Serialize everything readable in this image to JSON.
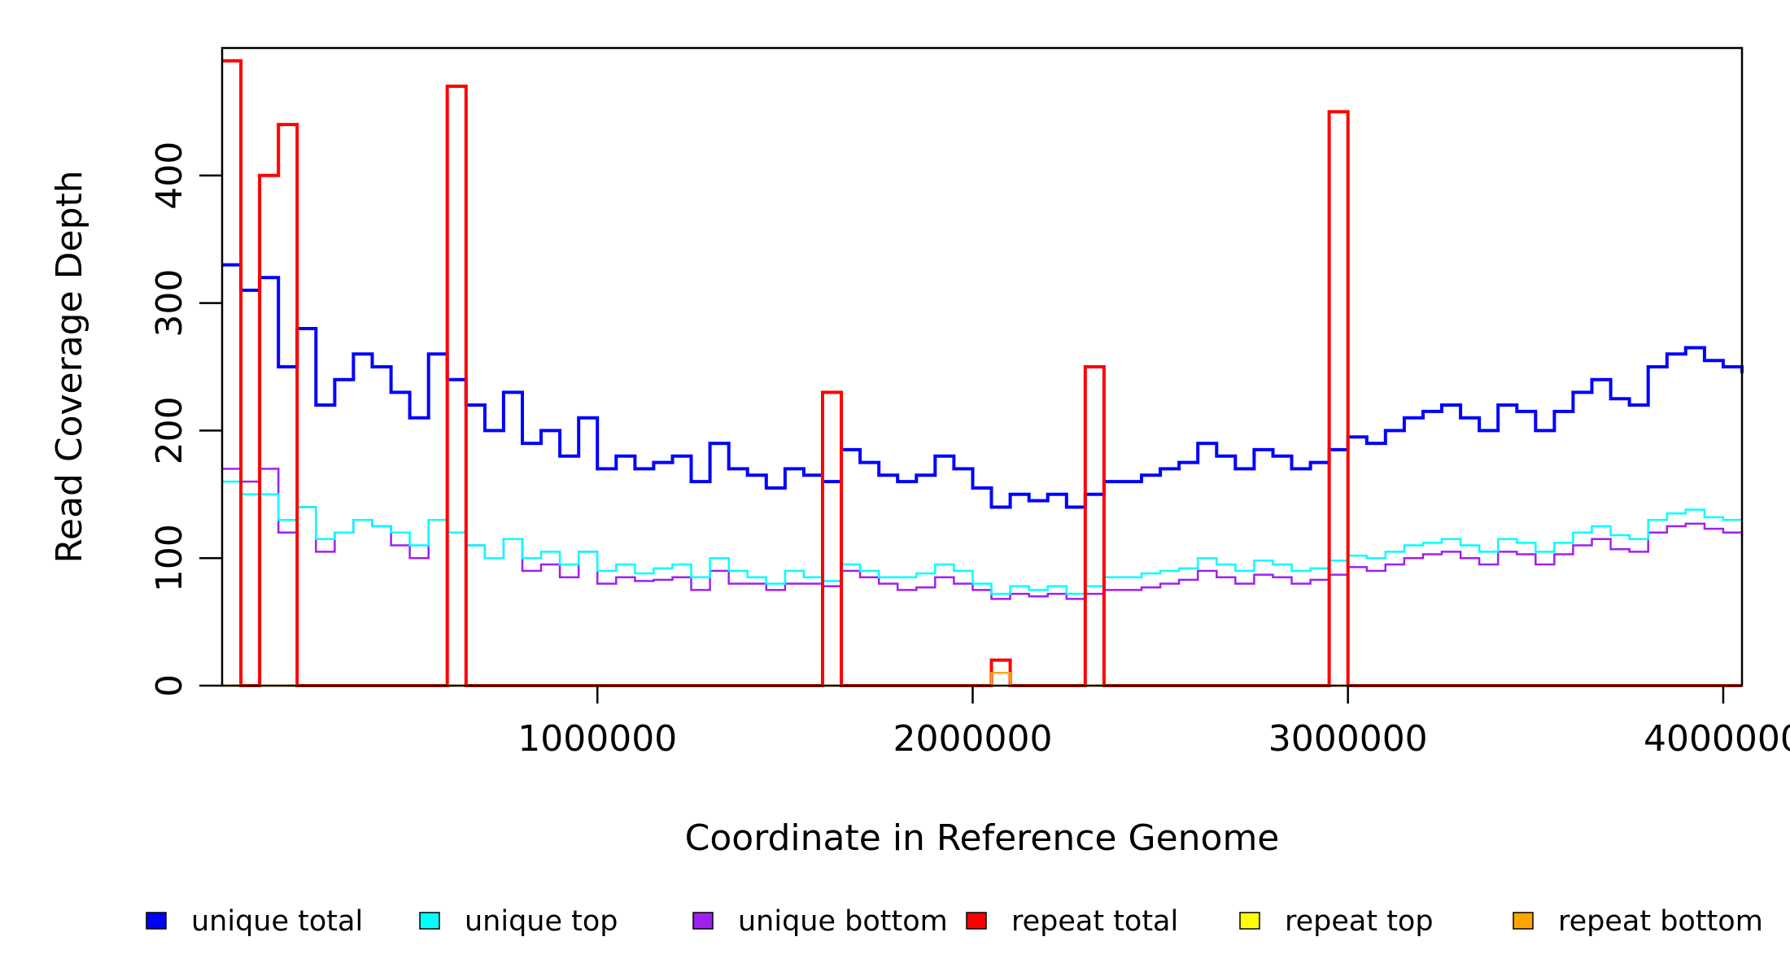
{
  "chart_data": {
    "type": "line",
    "title": "",
    "xlabel": "Coordinate in Reference Genome",
    "ylabel": "Read Coverage Depth",
    "xlim": [
      0,
      4050000
    ],
    "ylim": [
      0,
      500
    ],
    "x_ticks": [
      1000000,
      2000000,
      3000000,
      4000000
    ],
    "x_tick_labels": [
      "1000000",
      "2000000",
      "3000000",
      "4000000"
    ],
    "y_ticks": [
      0,
      100,
      200,
      300,
      400
    ],
    "y_tick_labels": [
      "0",
      "100",
      "200",
      "300",
      "400"
    ],
    "grid": false,
    "legend_position": "bottom",
    "x": [
      0,
      50000,
      100000,
      150000,
      200000,
      250000,
      300000,
      350000,
      400000,
      450000,
      500000,
      550000,
      600000,
      650000,
      700000,
      750000,
      800000,
      850000,
      900000,
      950000,
      1000000,
      1050000,
      1100000,
      1150000,
      1200000,
      1250000,
      1300000,
      1350000,
      1400000,
      1450000,
      1500000,
      1550000,
      1600000,
      1650000,
      1700000,
      1750000,
      1800000,
      1850000,
      1900000,
      1950000,
      2000000,
      2050000,
      2100000,
      2150000,
      2200000,
      2250000,
      2300000,
      2350000,
      2400000,
      2450000,
      2500000,
      2550000,
      2600000,
      2650000,
      2700000,
      2750000,
      2800000,
      2850000,
      2900000,
      2950000,
      3000000,
      3050000,
      3100000,
      3150000,
      3200000,
      3250000,
      3300000,
      3350000,
      3400000,
      3450000,
      3500000,
      3550000,
      3600000,
      3650000,
      3700000,
      3750000,
      3800000,
      3850000,
      3900000,
      3950000,
      4000000,
      4050000
    ],
    "series": [
      {
        "name": "unique total",
        "color": "#0000ff",
        "values": [
          330,
          310,
          320,
          250,
          280,
          220,
          240,
          260,
          250,
          230,
          210,
          260,
          240,
          220,
          200,
          230,
          190,
          200,
          180,
          210,
          170,
          180,
          170,
          175,
          180,
          160,
          190,
          170,
          165,
          155,
          170,
          165,
          160,
          185,
          175,
          165,
          160,
          165,
          180,
          170,
          155,
          140,
          150,
          145,
          150,
          140,
          150,
          160,
          160,
          165,
          170,
          175,
          190,
          180,
          170,
          185,
          180,
          170,
          175,
          185,
          195,
          190,
          200,
          210,
          215,
          220,
          210,
          200,
          220,
          215,
          200,
          215,
          230,
          240,
          225,
          220,
          250,
          260,
          265,
          255,
          250,
          245
        ]
      },
      {
        "name": "unique top",
        "color": "#00ffff",
        "values": [
          160,
          150,
          150,
          130,
          140,
          115,
          120,
          130,
          125,
          120,
          110,
          130,
          120,
          110,
          100,
          115,
          100,
          105,
          95,
          105,
          90,
          95,
          88,
          92,
          95,
          85,
          100,
          90,
          85,
          80,
          90,
          85,
          82,
          95,
          90,
          85,
          85,
          88,
          95,
          90,
          80,
          72,
          78,
          75,
          78,
          72,
          78,
          85,
          85,
          88,
          90,
          92,
          100,
          95,
          90,
          98,
          95,
          90,
          92,
          98,
          102,
          100,
          105,
          110,
          112,
          115,
          110,
          105,
          115,
          112,
          105,
          112,
          120,
          125,
          118,
          115,
          130,
          135,
          138,
          132,
          130,
          128
        ]
      },
      {
        "name": "unique bottom",
        "color": "#a020f0",
        "values": [
          170,
          160,
          170,
          120,
          140,
          105,
          120,
          130,
          125,
          110,
          100,
          130,
          120,
          110,
          100,
          115,
          90,
          95,
          85,
          105,
          80,
          85,
          82,
          83,
          85,
          75,
          90,
          80,
          80,
          75,
          80,
          80,
          78,
          90,
          85,
          80,
          75,
          77,
          85,
          80,
          75,
          68,
          72,
          70,
          72,
          68,
          72,
          75,
          75,
          77,
          80,
          83,
          90,
          85,
          80,
          87,
          85,
          80,
          83,
          87,
          93,
          90,
          95,
          100,
          103,
          105,
          100,
          95,
          105,
          103,
          95,
          103,
          110,
          115,
          107,
          105,
          120,
          125,
          127,
          123,
          120,
          117
        ]
      },
      {
        "name": "repeat total",
        "color": "#ff0000",
        "values": [
          490,
          0,
          400,
          440,
          0,
          0,
          0,
          0,
          0,
          0,
          0,
          0,
          470,
          0,
          0,
          0,
          0,
          0,
          0,
          0,
          0,
          0,
          0,
          0,
          0,
          0,
          0,
          0,
          0,
          0,
          0,
          0,
          230,
          0,
          0,
          0,
          0,
          0,
          0,
          0,
          0,
          20,
          0,
          0,
          0,
          0,
          250,
          0,
          0,
          0,
          0,
          0,
          0,
          0,
          0,
          0,
          0,
          0,
          0,
          450,
          0,
          0,
          0,
          0,
          0,
          0,
          0,
          0,
          0,
          0,
          0,
          0,
          0,
          0,
          0,
          0,
          0,
          0,
          0,
          0,
          0,
          0
        ]
      },
      {
        "name": "repeat top",
        "color": "#ffff00",
        "values": [
          0,
          0,
          0,
          0,
          0,
          0,
          0,
          0,
          0,
          0,
          0,
          0,
          0,
          0,
          0,
          0,
          0,
          0,
          0,
          0,
          0,
          0,
          0,
          0,
          0,
          0,
          0,
          0,
          0,
          0,
          0,
          0,
          0,
          0,
          0,
          0,
          0,
          0,
          0,
          0,
          0,
          0,
          0,
          0,
          0,
          0,
          0,
          0,
          0,
          0,
          0,
          0,
          0,
          0,
          0,
          0,
          0,
          0,
          0,
          0,
          0,
          0,
          0,
          0,
          0,
          0,
          0,
          0,
          0,
          0,
          0,
          0,
          0,
          0,
          0,
          0,
          0,
          0,
          0,
          0,
          0,
          0
        ]
      },
      {
        "name": "repeat bottom",
        "color": "#ffa500",
        "values": [
          0,
          0,
          0,
          0,
          0,
          0,
          0,
          0,
          0,
          0,
          0,
          0,
          0,
          0,
          0,
          0,
          0,
          0,
          0,
          0,
          0,
          0,
          0,
          0,
          0,
          0,
          0,
          0,
          0,
          0,
          0,
          0,
          0,
          0,
          0,
          0,
          0,
          0,
          0,
          0,
          0,
          10,
          0,
          0,
          0,
          0,
          0,
          0,
          0,
          0,
          0,
          0,
          0,
          0,
          0,
          0,
          0,
          0,
          0,
          0,
          0,
          0,
          0,
          0,
          0,
          0,
          0,
          0,
          0,
          0,
          0,
          0,
          0,
          0,
          0,
          0,
          0,
          0,
          0,
          0,
          0,
          0
        ]
      }
    ]
  }
}
